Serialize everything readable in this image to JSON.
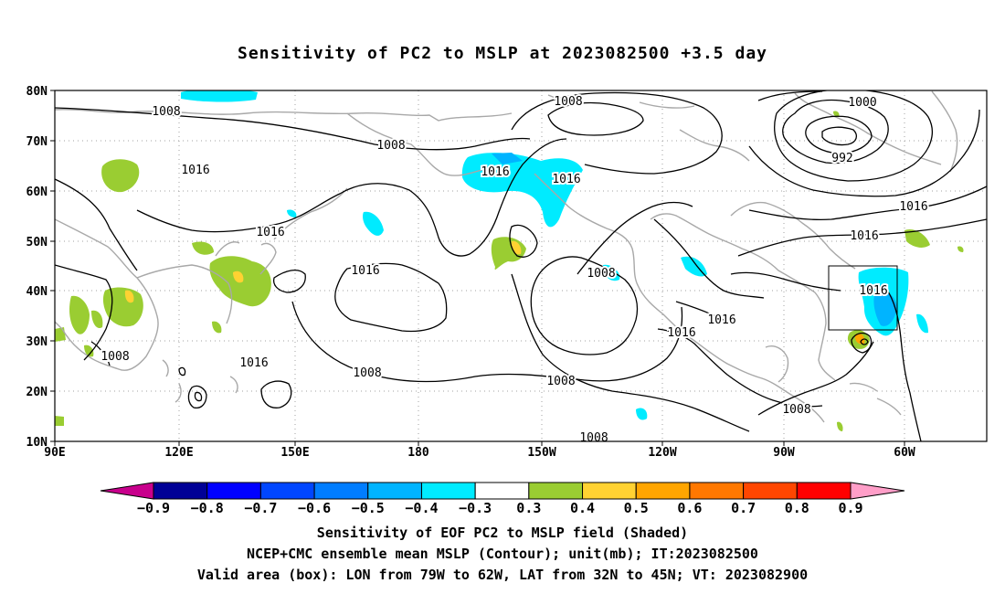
{
  "title": "Sensitivity of PC2 to MSLP at 2023082500 +3.5 day",
  "map": {
    "lat_labels": [
      "80N",
      "70N",
      "60N",
      "50N",
      "40N",
      "30N",
      "20N",
      "10N"
    ],
    "lon_labels": [
      "90E",
      "120E",
      "150E",
      "180",
      "150W",
      "120W",
      "90W",
      "60W"
    ],
    "extent": {
      "lon_range": [
        "90E",
        "35W"
      ],
      "lat_range": [
        "10N",
        "80N"
      ]
    },
    "grid": "dotted",
    "contour_labels": [
      "1008",
      "1008",
      "1016",
      "1016",
      "1008",
      "1000",
      "992",
      "1016",
      "1016",
      "1016",
      "1008",
      "1016",
      "1016",
      "1016",
      "1016",
      "1016",
      "1008",
      "1008",
      "1016",
      "1008",
      "1008",
      "1008"
    ],
    "box": {
      "lon": [
        "79W",
        "62W"
      ],
      "lat": [
        "32N",
        "45N"
      ]
    }
  },
  "colorbar": {
    "labels": [
      "-0.9",
      "-0.8",
      "-0.7",
      "-0.6",
      "-0.5",
      "-0.4",
      "-0.3",
      "0.3",
      "0.4",
      "0.5",
      "0.6",
      "0.7",
      "0.8",
      "0.9"
    ],
    "colors": [
      "#000096",
      "#0000ff",
      "#0046ff",
      "#007dff",
      "#00b4ff",
      "#00ebff",
      "#ffffff",
      "#9acd32",
      "#ffd232",
      "#ffa500",
      "#ff7800",
      "#ff4600",
      "#ff0000"
    ],
    "end_low": "#c8008c",
    "end_high": "#ff9ec8"
  },
  "captions": {
    "line1": "Sensitivity of EOF PC2 to MSLP field (Shaded)",
    "line2": "NCEP+CMC ensemble mean MSLP (Contour); unit(mb); IT:2023082500",
    "line3": "Valid area (box): LON from 79W to 62W, LAT from 32N to 45N; VT: 2023082900"
  }
}
